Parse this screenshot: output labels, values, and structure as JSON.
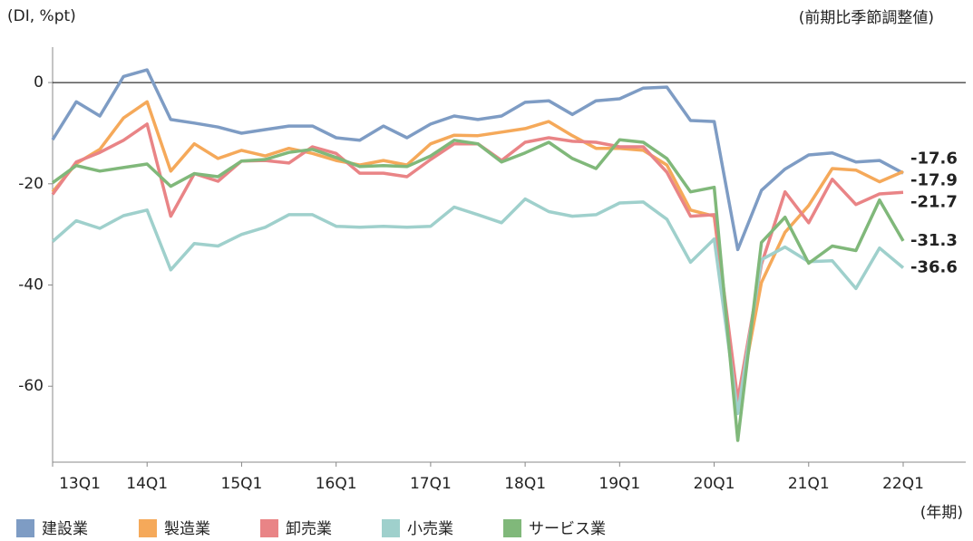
{
  "chart_data": {
    "type": "line",
    "y_label": "(DI, %pt)",
    "subtitle": "(前期比季節調整値)",
    "x_label": "(年期)",
    "categories": [
      "13Q1",
      null,
      null,
      null,
      "14Q1",
      null,
      null,
      null,
      "15Q1",
      null,
      null,
      null,
      "16Q1",
      null,
      null,
      null,
      "17Q1",
      null,
      null,
      null,
      "18Q1",
      null,
      null,
      null,
      "19Q1",
      null,
      null,
      null,
      "20Q1",
      null,
      null,
      null,
      "21Q1",
      null,
      null,
      null,
      "22Q1"
    ],
    "ylim": [
      -75,
      7
    ],
    "yticks": [
      0,
      -20,
      -40,
      -60
    ],
    "zero_line": true,
    "end_labels": true,
    "series": [
      {
        "name": "建設業",
        "color": "#7e9cc4",
        "values": [
          -11.3,
          -3.8,
          -6.6,
          1.2,
          2.5,
          -7.3,
          -8,
          -8.8,
          -10,
          -9.3,
          -8.6,
          -8.6,
          -10.9,
          -11.4,
          -8.6,
          -10.9,
          -8.2,
          -6.6,
          -7.3,
          -6.6,
          -3.9,
          -3.6,
          -6.3,
          -3.6,
          -3.2,
          -1.1,
          -0.9,
          -7.5,
          -7.7,
          -33,
          -21.3,
          -17.1,
          -14.3,
          -13.9,
          -15.7,
          -15.4,
          -17.9
        ]
      },
      {
        "name": "製造業",
        "color": "#f5a95a",
        "values": [
          -21.6,
          -16,
          -13.2,
          -7,
          -3.8,
          -17.5,
          -12.1,
          -15,
          -13.4,
          -14.5,
          -13,
          -14,
          -15.4,
          -16.3,
          -15.4,
          -16.3,
          -12.1,
          -10.4,
          -10.5,
          -9.8,
          -9.1,
          -7.7,
          -10.5,
          -13,
          -13,
          -13.4,
          -16.3,
          -25.2,
          -26.4,
          -64.5,
          -39.5,
          -29.6,
          -24.3,
          -17,
          -17.3,
          -19.6,
          -17.6
        ]
      },
      {
        "name": "卸売業",
        "color": "#e98486",
        "values": [
          -22.1,
          -15.7,
          -13.8,
          -11.4,
          -8.2,
          -26.4,
          -18,
          -19.5,
          -15.5,
          -15.4,
          -15.9,
          -12.7,
          -14,
          -17.9,
          -17.9,
          -18.6,
          -15.2,
          -12.1,
          -12.1,
          -15.4,
          -11.8,
          -10.9,
          -11.6,
          -11.8,
          -12.7,
          -12.7,
          -17.7,
          -26.4,
          -26.1,
          -62.7,
          -35.9,
          -21.6,
          -27.7,
          -19.1,
          -24.1,
          -22,
          -21.7
        ]
      },
      {
        "name": "小売業",
        "color": "#9fd0cc",
        "values": [
          -31.4,
          -27.3,
          -28.8,
          -26.3,
          -25.2,
          -37,
          -31.8,
          -32.3,
          -30,
          -28.6,
          -26.1,
          -26.1,
          -28.4,
          -28.6,
          -28.4,
          -28.6,
          -28.4,
          -24.6,
          -26.1,
          -27.7,
          -23,
          -25.5,
          -26.4,
          -26.1,
          -23.8,
          -23.6,
          -27,
          -35.5,
          -30.9,
          -65.4,
          -35,
          -32.5,
          -35.4,
          -35.2,
          -40.7,
          -32.7,
          -36.6
        ]
      },
      {
        "name": "サービス業",
        "color": "#80b87a",
        "values": [
          -19.8,
          -16.4,
          -17.5,
          -16.8,
          -16.1,
          -20.5,
          -18,
          -18.6,
          -15.5,
          -15.2,
          -13.8,
          -13.2,
          -14.8,
          -16.6,
          -16.4,
          -16.6,
          -14.5,
          -11.4,
          -12.1,
          -15.7,
          -13.9,
          -11.8,
          -15,
          -17,
          -11.3,
          -11.8,
          -15,
          -21.6,
          -20.7,
          -70.7,
          -31.6,
          -26.6,
          -35.7,
          -32.3,
          -33.2,
          -23.2,
          -31.3
        ]
      }
    ]
  }
}
